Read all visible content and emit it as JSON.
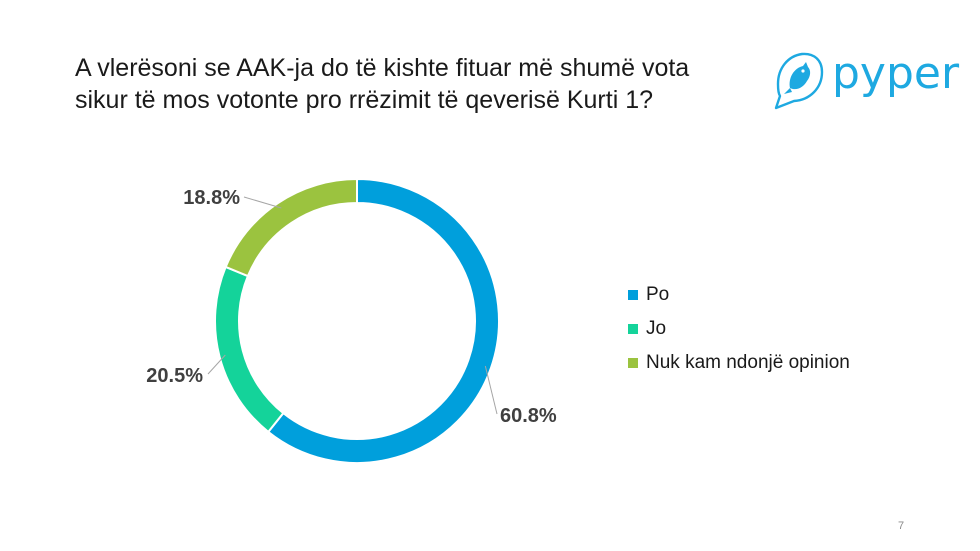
{
  "slide": {
    "title_line1": "A vlerësoni se AAK-ja do të kishte fituar më shumë vota",
    "title_line2": "sikur të mos votonte pro rrëzimit të qeverisë Kurti 1?",
    "page_number": "7"
  },
  "logo": {
    "text": "pyper",
    "color": "#1ea9e1",
    "icon": "bird-icon"
  },
  "chart_data": {
    "type": "pie",
    "variant": "donut",
    "categories": [
      "Po",
      "Jo",
      "Nuk kam ndonjë opinion"
    ],
    "values": [
      60.8,
      20.5,
      18.8
    ],
    "data_labels": [
      "60.8%",
      "20.5%",
      "18.8%"
    ],
    "colors": [
      "#009fdc",
      "#14d39a",
      "#9bc33f"
    ],
    "legend_position": "right"
  }
}
